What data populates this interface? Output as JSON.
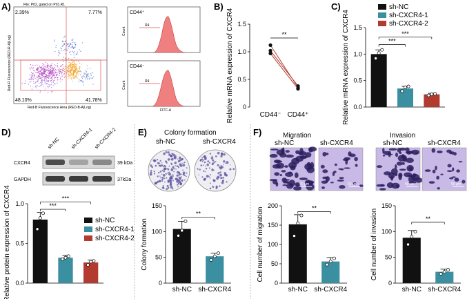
{
  "colors": {
    "sh_nc": "#111111",
    "sh_cxcr4_1": "#3a8fa0",
    "sh_cxcr4_2": "#b23a2f",
    "sh_cxcr4": "#3a8fa0",
    "histogram_fill": "#f08080",
    "gate_line": "#e05050",
    "blot_bg": "#d8d8d8",
    "band": "#2a2a2a",
    "stain_bg": "#c9b9e6",
    "stain_dark": "#2a1f5e",
    "colony": "#5a4f9e"
  },
  "panels": {
    "A": {
      "letter": "A)",
      "header": "File: P02, gated on P01.R1",
      "quadrants": [
        "2.39%",
        "7.77%",
        "48.10%",
        "41.78%"
      ],
      "xaxis": "Red-B Fluorescence Area (RED-B-A|Log)",
      "yaxis": "Red-R Fluorescence (RED-R-A|Log)",
      "hist_top_label": "CD44⁺",
      "hist_bottom_label": "CD44⁻",
      "hist_gate": "R4",
      "hist_xaxis": "FITC-A",
      "hist_yaxis": "Count"
    },
    "B": {
      "letter": "B)",
      "ylabel": "Relative mRNA expression of CXCR4",
      "sig": "**"
    },
    "C": {
      "letter": "C)",
      "ylabel": "Relative mRNA expression of CXCR4",
      "sig": [
        "***",
        "***"
      ]
    },
    "D": {
      "letter": "D)",
      "lanes": [
        "sh-NC",
        "sh-CXCR4-1",
        "sh-CXCR4-2"
      ],
      "bands": [
        {
          "name": "CXCR4",
          "kda": "39 kDa",
          "levels": [
            0.8,
            0.3,
            0.45
          ]
        },
        {
          "name": "GAPDH",
          "kda": "37kDa",
          "levels": [
            0.9,
            0.9,
            0.9
          ]
        }
      ],
      "ylabel": "Relative protein expression of CXCR4",
      "sig": [
        "***",
        "***"
      ]
    },
    "E": {
      "letter": "E)",
      "title": "Colony formation",
      "groups": [
        "sh-NC",
        "sh-CXCR4"
      ],
      "ylabel": "Colony formation",
      "sig": "**"
    },
    "F": {
      "letter": "F)",
      "migration_title": "Migration",
      "invasion_title": "Invasion",
      "groups": [
        "sh-NC",
        "sh-CXCR4"
      ],
      "scale_bar": "50 μm",
      "migration_ylabel": "Cell number of migration",
      "invasion_ylabel": "Cell number of invasion",
      "sig": "**"
    }
  },
  "chart_data": [
    {
      "id": "B",
      "type": "scatter",
      "paired": true,
      "categories": [
        "CD44⁻",
        "CD44⁺"
      ],
      "series": [
        {
          "values": [
            1.12,
            0.35
          ]
        },
        {
          "values": [
            1.02,
            0.38
          ]
        },
        {
          "values": [
            0.97,
            0.33
          ]
        }
      ],
      "ylabel": "Relative mRNA expression of CXCR4",
      "ylim": [
        0,
        1.5
      ],
      "yticks": [
        "0",
        "0.5",
        "1.0",
        "1.5"
      ]
    },
    {
      "id": "C",
      "type": "bar",
      "categories": [
        "sh-NC",
        "sh-CXCR4-1",
        "sh-CXCR4-2"
      ],
      "values": [
        1.0,
        0.35,
        0.24
      ],
      "errors": [
        0.08,
        0.04,
        0.02
      ],
      "points": [
        [
          0.92,
          1.02,
          1.08
        ],
        [
          0.3,
          0.37,
          0.39
        ],
        [
          0.22,
          0.24,
          0.25
        ]
      ],
      "legend": [
        "sh-NC",
        "sh-CXCR4-1",
        "sh-CXCR4-2"
      ],
      "legend_position": "top",
      "ylabel": "Relative mRNA expression of CXCR4",
      "ylim": [
        0,
        1.5
      ],
      "yticks": [
        "0.0",
        "0.5",
        "1.0",
        "1.5"
      ]
    },
    {
      "id": "D",
      "type": "bar",
      "categories": [
        "sh-NC",
        "sh-CXCR4-1",
        "sh-CXCR4-2"
      ],
      "values": [
        0.8,
        0.32,
        0.26
      ],
      "errors": [
        0.09,
        0.03,
        0.03
      ],
      "points": [
        [
          0.68,
          0.82,
          0.88
        ],
        [
          0.3,
          0.32,
          0.34
        ],
        [
          0.23,
          0.27,
          0.28
        ]
      ],
      "legend": [
        "sh-NC",
        "sh-CXCR4-1",
        "sh-CXCR4-2"
      ],
      "legend_position": "right",
      "ylabel": "Relative protein expression of CXCR4",
      "ylim": [
        0,
        1.0
      ],
      "yticks": [
        "0.0",
        "0.5",
        "1.0"
      ]
    },
    {
      "id": "E",
      "type": "bar",
      "categories": [
        "sh-NC",
        "sh-CXCR4"
      ],
      "values": [
        105,
        52
      ],
      "errors": [
        15,
        6
      ],
      "points": [
        [
          92,
          102,
          120
        ],
        [
          45,
          52,
          58
        ]
      ],
      "ylabel": "Colony formation",
      "ylim": [
        0,
        150
      ],
      "yticks": [
        "0",
        "50",
        "100",
        "150"
      ]
    },
    {
      "id": "F-migration",
      "type": "bar",
      "categories": [
        "sh-NC",
        "sh-CXCR4"
      ],
      "values": [
        152,
        56
      ],
      "errors": [
        25,
        10
      ],
      "points": [
        [
          122,
          155,
          175
        ],
        [
          48,
          56,
          64
        ]
      ],
      "ylabel": "Cell number of migration",
      "ylim": [
        0,
        200
      ],
      "yticks": [
        "0",
        "50",
        "100",
        "150",
        "200"
      ]
    },
    {
      "id": "F-invasion",
      "type": "bar",
      "categories": [
        "sh-NC",
        "sh-CXCR4"
      ],
      "values": [
        88,
        22
      ],
      "errors": [
        14,
        5
      ],
      "points": [
        [
          75,
          90,
          100
        ],
        [
          18,
          22,
          26
        ]
      ],
      "ylabel": "Cell number of invasion",
      "ylim": [
        0,
        150
      ],
      "yticks": [
        "0",
        "50",
        "100",
        "150"
      ]
    }
  ]
}
